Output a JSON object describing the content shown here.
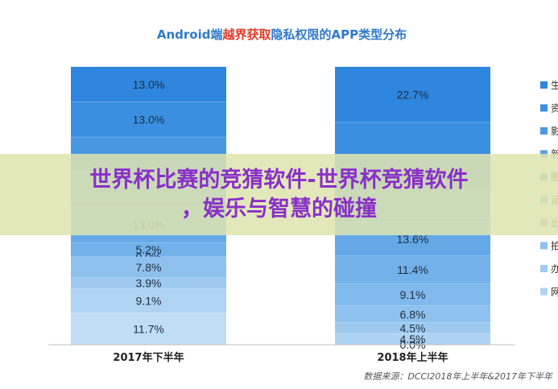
{
  "chart_data": {
    "type": "bar",
    "stacked": true,
    "title_parts": [
      {
        "text": "Android端",
        "color": "#2f79c9"
      },
      {
        "text": "越界获取",
        "color": "#e23a2a"
      },
      {
        "text": "隐私权限的APP类型分布",
        "color": "#2f79c9"
      }
    ],
    "categories": [
      "2017年下半年",
      "2018年上半年"
    ],
    "series": [
      {
        "name": "生",
        "color": "#2e86de",
        "values": [
          13.0,
          22.7
        ]
      },
      {
        "name": "资",
        "color": "#3a8fe0",
        "values": [
          13.0,
          13.6
        ]
      },
      {
        "name": "影",
        "color": "#4897e2",
        "values": [
          13.0,
          13.6
        ]
      },
      {
        "name": "新",
        "color": "#569fe5",
        "values": [
          13.0,
          13.6
        ]
      },
      {
        "name": "图",
        "color": "#64a8e8",
        "values": [
          13.0,
          13.6
        ]
      },
      {
        "name": "运",
        "color": "#72b1ea",
        "values": [
          5.2,
          11.4
        ]
      },
      {
        "name": "出",
        "color": "#80b9ec",
        "values": [
          0.0,
          9.1
        ]
      },
      {
        "name": "拍",
        "color": "#8ec1ee",
        "values": [
          7.8,
          6.8
        ]
      },
      {
        "name": "办",
        "color": "#9ecaf0",
        "values": [
          3.9,
          4.5
        ]
      },
      {
        "name": "网",
        "color": "#aed3f3",
        "values": [
          9.1,
          4.5
        ]
      },
      {
        "name": "",
        "color": "#c0ddf6",
        "values": [
          11.7,
          0.0
        ]
      }
    ],
    "labels": [
      [
        "13.0%",
        "13.0%",
        "",
        "",
        "13.0%",
        "5.2%",
        "0.0%",
        "7.8%",
        "3.9%",
        "9.1%",
        "11.7%"
      ],
      [
        "22.7%",
        "",
        "13.6%",
        "",
        "13.6%",
        "11.4%",
        "9.1%",
        "6.8%",
        "4.5%",
        "4.5%",
        "0.0%"
      ]
    ],
    "legend_position": "right",
    "grid": false,
    "source": "数据来源：DCCI2018年上半年&2017年下半年"
  },
  "banner": {
    "line1": "世界杯比赛的竞猜软件-世界杯竞猜软件",
    "line2": "，娱乐与智慧的碰撞"
  }
}
